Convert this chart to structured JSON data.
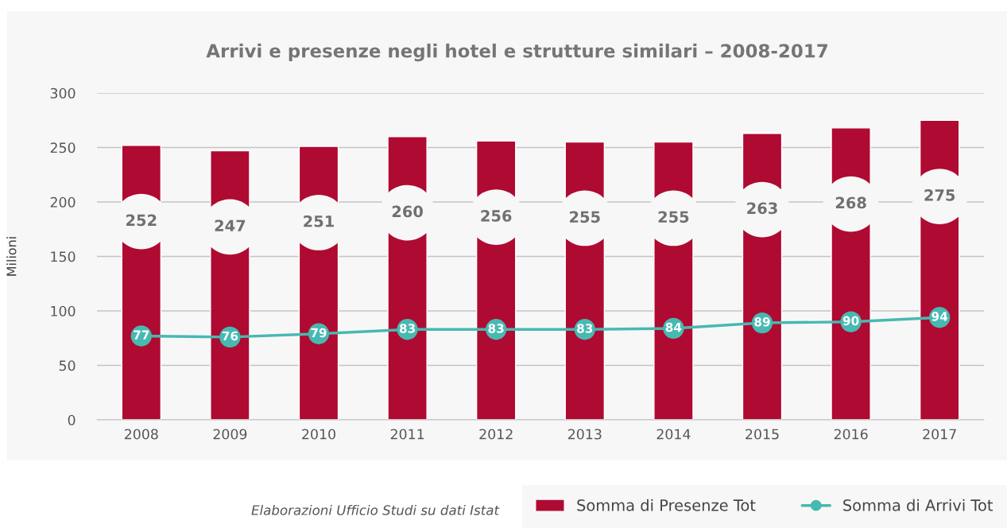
{
  "chart_data": {
    "type": "bar",
    "title": "Arrivi e presenze negli hotel e strutture similari – 2008-2017",
    "ylabel": "Milioni",
    "categories": [
      "2008",
      "2009",
      "2010",
      "2011",
      "2012",
      "2013",
      "2014",
      "2015",
      "2016",
      "2017"
    ],
    "series": [
      {
        "name": "Somma di Presenze Tot",
        "color": "#af0a31",
        "values": [
          252,
          247,
          251,
          260,
          256,
          255,
          255,
          263,
          268,
          275
        ]
      },
      {
        "name": "Somma di Arrivi Tot",
        "type": "line",
        "color": "#47b9b1",
        "marker": "circle",
        "values": [
          77,
          76,
          79,
          83,
          83,
          83,
          84,
          89,
          90,
          94
        ]
      }
    ],
    "ylim": [
      0,
      300
    ],
    "yticks": [
      0,
      50,
      100,
      150,
      200,
      250,
      300
    ],
    "grid": "y",
    "legend": "bottom right",
    "data_labels": true,
    "annotations": [
      "Elaborazioni Ufficio Studi su dati Istat"
    ]
  }
}
